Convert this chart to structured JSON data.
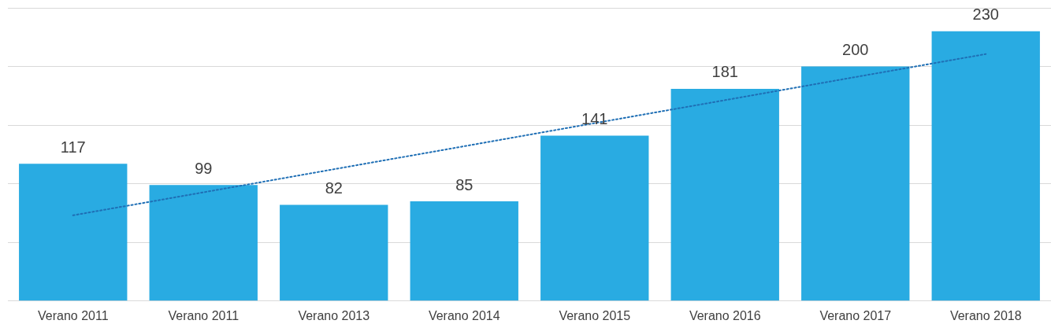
{
  "chart_data": {
    "type": "bar",
    "categories": [
      "Verano 2011",
      "Verano 2011",
      "Verano 2013",
      "Verano 2014",
      "Verano 2015",
      "Verano 2016",
      "Verano 2017",
      "Verano 2018"
    ],
    "series": [
      {
        "color": "#29abe2",
        "values": [
          117,
          99,
          82,
          85,
          141,
          181,
          200,
          230
        ],
        "value_labels": [
          "117",
          "99",
          "82",
          "85",
          "141",
          "181",
          "200",
          "230"
        ]
      },
      {
        "type": "line",
        "color": "#1f6fb5",
        "line_style": "dotted",
        "marker": "none",
        "values": [
          73.1,
          92.7,
          112.4,
          132.0,
          151.7,
          171.3,
          191.0,
          210.6
        ]
      }
    ],
    "ylim": [
      0,
      250
    ],
    "grid": "y",
    "tick_labels": "x",
    "legend": false
  }
}
